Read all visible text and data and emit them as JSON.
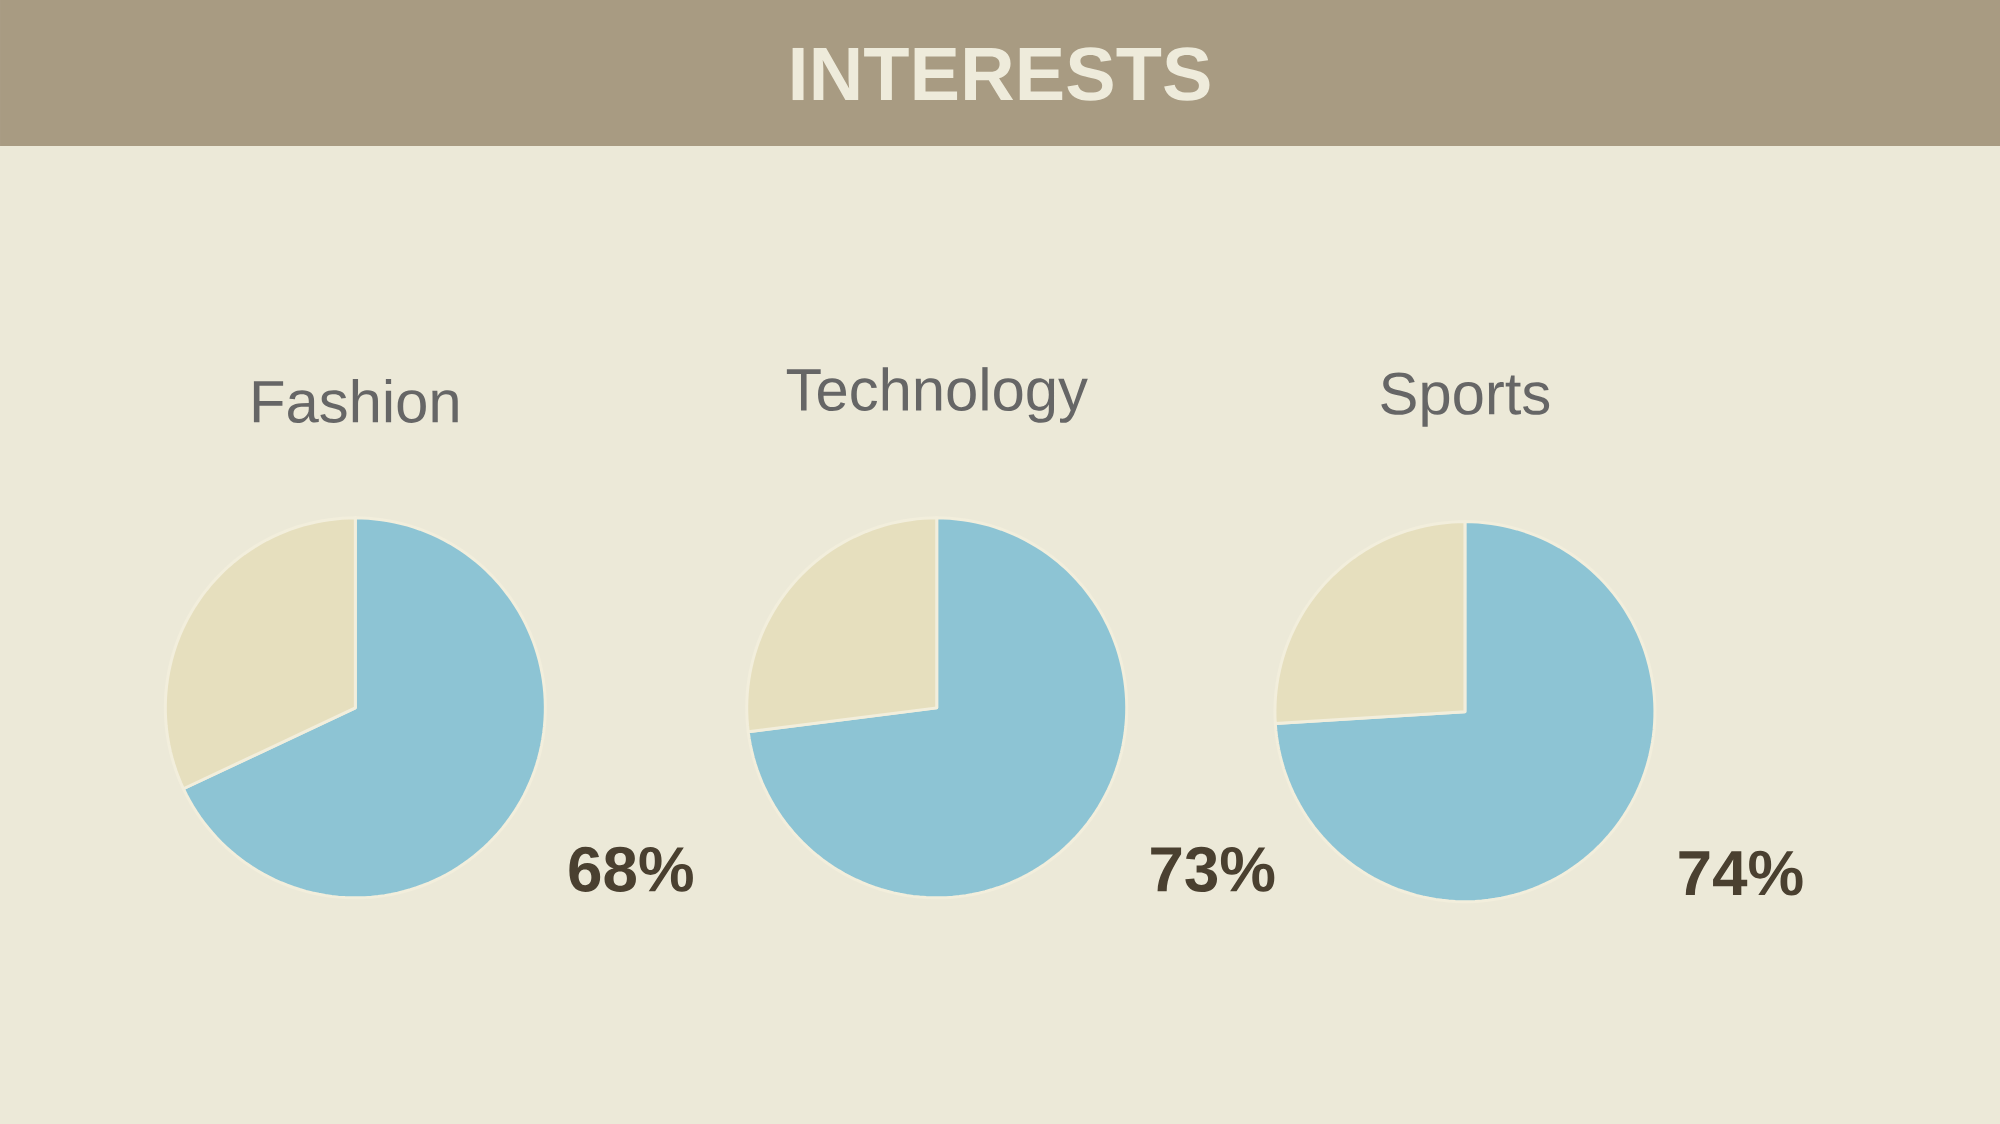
{
  "chart_data": [
    {
      "type": "other",
      "title": "INTERESTS"
    },
    {
      "type": "pie",
      "title": "Fashion",
      "categories": [
        null,
        null
      ],
      "values": [
        68,
        32
      ],
      "colors": [
        "#8dc4d4",
        "#e6dfbe"
      ],
      "value_labels": [
        "68%",
        null
      ]
    },
    {
      "type": "pie",
      "title": "Technology",
      "categories": [
        null,
        null
      ],
      "values": [
        73,
        27
      ],
      "colors": [
        "#8dc4d4",
        "#e6dfbe"
      ],
      "value_labels": [
        "73%",
        null
      ]
    },
    {
      "type": "pie",
      "title": "Sports",
      "categories": [
        null,
        null
      ],
      "values": [
        74,
        26
      ],
      "colors": [
        "#8dc4d4",
        "#e6dfbe"
      ],
      "value_labels": [
        "74%",
        null
      ]
    }
  ]
}
